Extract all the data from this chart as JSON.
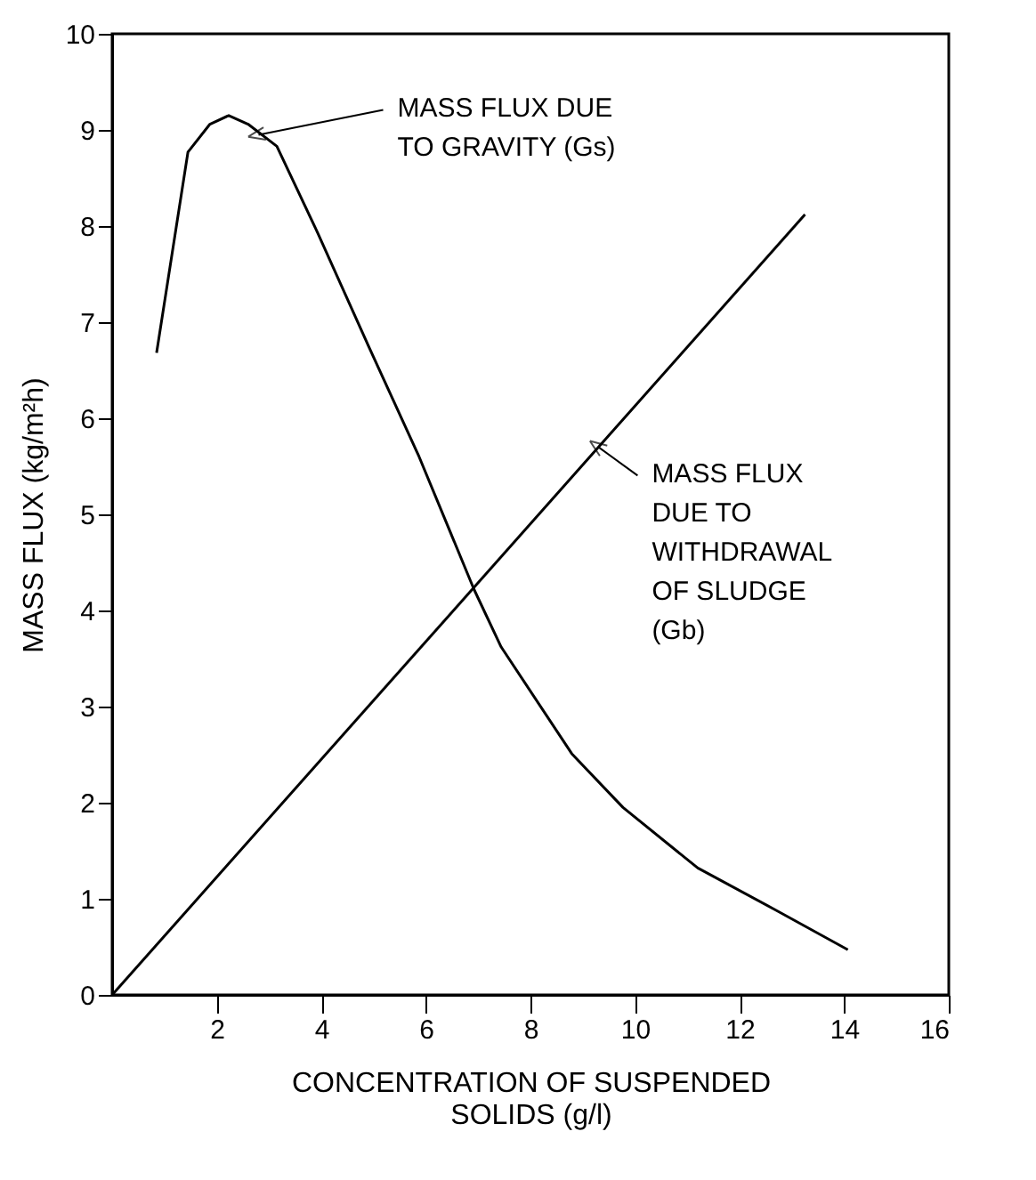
{
  "chart_data": {
    "type": "line",
    "xlabel": "CONCENTRATION OF SUSPENDED\nSOLIDS (g/l)",
    "ylabel": "MASS FLUX (kg/m²h)",
    "xlim": [
      0,
      16
    ],
    "xticks": [
      2,
      4,
      6,
      8,
      10,
      12,
      14,
      16
    ],
    "ylim": [
      0,
      10
    ],
    "yticks": [
      0,
      1,
      2,
      3,
      4,
      5,
      6,
      7,
      8,
      9,
      10
    ],
    "grid": false,
    "marker": "none",
    "line_style": "solid",
    "series": [
      {
        "color": "#000000",
        "x": [
          0.85,
          1.45,
          1.87,
          2.23,
          2.6,
          3.15,
          3.93,
          4.92,
          5.87,
          6.92,
          7.44,
          8.79,
          9.77,
          11.2,
          12.7,
          14.07
        ],
        "values": [
          6.68,
          8.77,
          9.06,
          9.15,
          9.06,
          8.83,
          7.93,
          6.73,
          5.6,
          4.22,
          3.62,
          2.51,
          1.95,
          1.32,
          0.88,
          0.47
        ]
      },
      {
        "color": "#000000",
        "x": [
          0,
          13.25
        ],
        "values": [
          0,
          8.12
        ]
      }
    ],
    "annotations": [
      {
        "text": "MASS FLUX DUE\nTO GRAVITY  (Gs)",
        "x": 2.8,
        "y": 8.95
      },
      {
        "text": "MASS FLUX\nDUE TO\nWITHDRAWAL\nOF SLUDGE\n(Gb)",
        "x": 9.3,
        "y": 5.7
      }
    ]
  }
}
